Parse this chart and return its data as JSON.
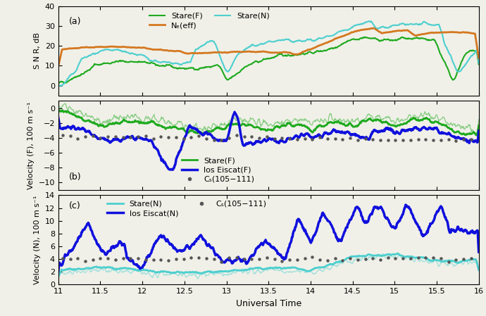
{
  "title": "",
  "xlabel": "Universal Time",
  "xlim": [
    11.0,
    16.0
  ],
  "xticks": [
    11.0,
    11.5,
    12.0,
    12.5,
    13.0,
    13.5,
    14.0,
    14.5,
    15.0,
    15.5,
    16.0
  ],
  "xticklabels": [
    "11",
    "11.5",
    "12",
    "12.5",
    "13",
    "13.5",
    "14",
    "14.5",
    "15",
    "15.5",
    "16"
  ],
  "panel_a": {
    "ylabel": "S N R, dB",
    "ylim": [
      -5,
      40
    ],
    "yticks": [
      0,
      10,
      20,
      30,
      40
    ],
    "label": "(a)"
  },
  "panel_b": {
    "ylabel": "Velocity (F), 100 m s⁻¹",
    "ylim": [
      -11,
      1
    ],
    "yticks": [
      -10,
      -8,
      -6,
      -4,
      -2,
      0
    ],
    "label": "(b)"
  },
  "panel_c": {
    "ylabel": "Velocity (N), 100 m s⁻¹",
    "ylim": [
      0,
      14
    ],
    "yticks": [
      0,
      2,
      4,
      6,
      8,
      10,
      12,
      14
    ],
    "label": "(c)"
  },
  "colors": {
    "finland_snr": "#1eaa1e",
    "norway_snr": "#4dcfcf",
    "ne_eff": "#d47820",
    "finland_vel_thick": "#1eaa1e",
    "finland_vel_thin": "#1eaa1e",
    "los_eiscat_f": "#1010dd",
    "norway_vel_thick": "#4dcfcf",
    "norway_vel_thin": "#4dcfcf",
    "los_eiscat_n": "#1010dd",
    "cs_dots": "#555555",
    "bg": "#f0f0e8"
  },
  "legend_a": {
    "stare_f": "Stare(F)",
    "stare_n": "Stare(N)",
    "ne_eff": "Nₑ(eff)"
  },
  "legend_b": {
    "stare_f": "Stare(F)",
    "los_eiscat_f": "los Eiscat(F)",
    "cs": "Cₛ(105−111)"
  },
  "legend_c": {
    "stare_n": "Stare(N)",
    "los_eiscat_n": "los Eiscat(N)",
    "cs": "Cₛ(105−111)"
  }
}
